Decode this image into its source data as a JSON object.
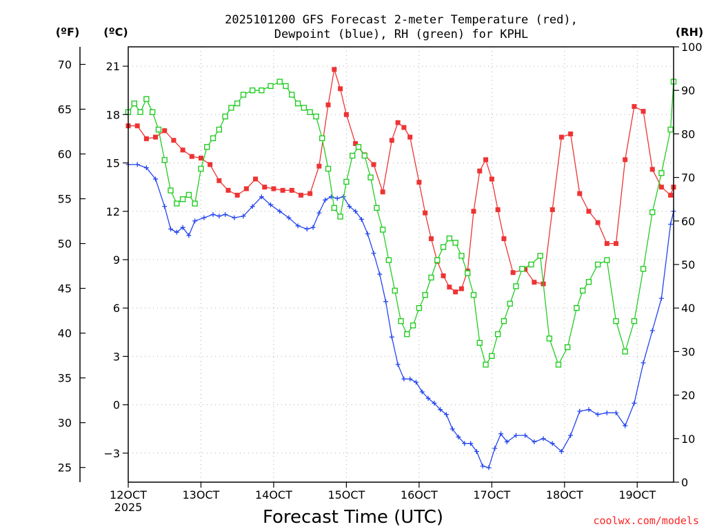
{
  "chart_data": {
    "type": "line",
    "title_line1": "2025101200 GFS Forecast 2-meter Temperature (red),",
    "title_line2": "Dewpoint (blue), RH (green) for KPHL",
    "xlabel": "Forecast Time (UTC)",
    "credit": "coolwx.com/models",
    "left_unit_f": "(ºF)",
    "left_unit_c": "(ºC)",
    "right_unit": "(RH)",
    "xlim": [
      0,
      180
    ],
    "ylim_c": [
      -4.8,
      22.2
    ],
    "ylim_rh": [
      0,
      100
    ],
    "x_ticks": [
      {
        "x": 0,
        "label": "12OCT",
        "sub": "2025"
      },
      {
        "x": 24,
        "label": "13OCT",
        "sub": ""
      },
      {
        "x": 48,
        "label": "14OCT",
        "sub": ""
      },
      {
        "x": 72,
        "label": "15OCT",
        "sub": ""
      },
      {
        "x": 96,
        "label": "16OCT",
        "sub": ""
      },
      {
        "x": 120,
        "label": "17OCT",
        "sub": ""
      },
      {
        "x": 144,
        "label": "18OCT",
        "sub": ""
      },
      {
        "x": 168,
        "label": "19OCT",
        "sub": ""
      }
    ],
    "c_ticks": [
      {
        "value": -3,
        "label": "−3"
      },
      {
        "value": 0,
        "label": "0"
      },
      {
        "value": 3,
        "label": "3"
      },
      {
        "value": 6,
        "label": "6"
      },
      {
        "value": 9,
        "label": "9"
      },
      {
        "value": 12,
        "label": "12"
      },
      {
        "value": 15,
        "label": "15"
      },
      {
        "value": 18,
        "label": "18"
      },
      {
        "value": 21,
        "label": "21"
      }
    ],
    "f_ticks": [
      {
        "value": 25,
        "label": "25"
      },
      {
        "value": 30,
        "label": "30"
      },
      {
        "value": 35,
        "label": "35"
      },
      {
        "value": 40,
        "label": "40"
      },
      {
        "value": 45,
        "label": "45"
      },
      {
        "value": 50,
        "label": "50"
      },
      {
        "value": 55,
        "label": "55"
      },
      {
        "value": 60,
        "label": "60"
      },
      {
        "value": 65,
        "label": "65"
      },
      {
        "value": 70,
        "label": "70"
      }
    ],
    "rh_ticks": [
      {
        "value": 0,
        "label": "0"
      },
      {
        "value": 10,
        "label": "10"
      },
      {
        "value": 20,
        "label": "20"
      },
      {
        "value": 30,
        "label": "30"
      },
      {
        "value": 40,
        "label": "40"
      },
      {
        "value": 50,
        "label": "50"
      },
      {
        "value": 60,
        "label": "60"
      },
      {
        "value": 70,
        "label": "70"
      },
      {
        "value": 80,
        "label": "80"
      },
      {
        "value": 90,
        "label": "90"
      },
      {
        "value": 100,
        "label": "100"
      }
    ],
    "series": [
      {
        "name": "2-meter Temperature",
        "axis": "C",
        "color": "#ee3333",
        "marker": "filled-square",
        "points": [
          [
            0,
            17.3
          ],
          [
            3,
            17.3
          ],
          [
            6,
            16.5
          ],
          [
            9,
            16.6
          ],
          [
            12,
            17.0
          ],
          [
            15,
            16.4
          ],
          [
            18,
            15.8
          ],
          [
            21,
            15.4
          ],
          [
            24,
            15.3
          ],
          [
            27,
            14.9
          ],
          [
            30,
            13.9
          ],
          [
            33,
            13.3
          ],
          [
            36,
            13.0
          ],
          [
            39,
            13.4
          ],
          [
            42,
            14.0
          ],
          [
            45,
            13.5
          ],
          [
            48,
            13.4
          ],
          [
            51,
            13.3
          ],
          [
            54,
            13.3
          ],
          [
            57,
            13.0
          ],
          [
            60,
            13.1
          ],
          [
            63,
            14.8
          ],
          [
            66,
            18.6
          ],
          [
            68,
            20.8
          ],
          [
            70,
            19.6
          ],
          [
            72,
            18.0
          ],
          [
            75,
            16.2
          ],
          [
            78,
            15.5
          ],
          [
            81,
            14.9
          ],
          [
            84,
            13.2
          ],
          [
            87,
            16.4
          ],
          [
            89,
            17.5
          ],
          [
            91,
            17.2
          ],
          [
            93,
            16.6
          ],
          [
            96,
            13.8
          ],
          [
            98,
            11.9
          ],
          [
            100,
            10.3
          ],
          [
            102,
            8.9
          ],
          [
            104,
            8.0
          ],
          [
            106,
            7.3
          ],
          [
            108,
            7.0
          ],
          [
            110,
            7.2
          ],
          [
            112,
            8.3
          ],
          [
            114,
            12.0
          ],
          [
            116,
            14.5
          ],
          [
            118,
            15.2
          ],
          [
            120,
            14.0
          ],
          [
            122,
            12.1
          ],
          [
            124,
            10.3
          ],
          [
            127,
            8.2
          ],
          [
            131,
            8.4
          ],
          [
            134,
            7.6
          ],
          [
            137,
            7.5
          ],
          [
            140,
            12.1
          ],
          [
            143,
            16.6
          ],
          [
            146,
            16.8
          ],
          [
            149,
            13.1
          ],
          [
            152,
            12.0
          ],
          [
            155,
            11.3
          ],
          [
            158,
            10.0
          ],
          [
            161,
            10.0
          ],
          [
            164,
            15.2
          ],
          [
            167,
            18.5
          ],
          [
            170,
            18.2
          ],
          [
            173,
            14.6
          ],
          [
            176,
            13.5
          ],
          [
            179,
            13.0
          ],
          [
            180,
            13.5
          ]
        ]
      },
      {
        "name": "Dewpoint",
        "axis": "C",
        "color": "#2244ee",
        "marker": "plus",
        "points": [
          [
            0,
            14.9
          ],
          [
            3,
            14.9
          ],
          [
            6,
            14.7
          ],
          [
            9,
            14.0
          ],
          [
            12,
            12.3
          ],
          [
            14,
            10.9
          ],
          [
            16,
            10.7
          ],
          [
            18,
            11.0
          ],
          [
            20,
            10.5
          ],
          [
            22,
            11.4
          ],
          [
            25,
            11.6
          ],
          [
            28,
            11.8
          ],
          [
            30,
            11.7
          ],
          [
            32,
            11.8
          ],
          [
            35,
            11.6
          ],
          [
            38,
            11.7
          ],
          [
            41,
            12.3
          ],
          [
            44,
            12.9
          ],
          [
            47,
            12.4
          ],
          [
            50,
            12.0
          ],
          [
            53,
            11.6
          ],
          [
            56,
            11.1
          ],
          [
            59,
            10.9
          ],
          [
            61,
            11.0
          ],
          [
            63,
            11.9
          ],
          [
            65,
            12.7
          ],
          [
            67,
            12.9
          ],
          [
            69,
            12.8
          ],
          [
            71,
            12.9
          ],
          [
            73,
            12.3
          ],
          [
            75,
            12.0
          ],
          [
            77,
            11.5
          ],
          [
            79,
            10.6
          ],
          [
            81,
            9.4
          ],
          [
            83,
            8.1
          ],
          [
            85,
            6.4
          ],
          [
            87,
            4.2
          ],
          [
            89,
            2.5
          ],
          [
            91,
            1.6
          ],
          [
            93,
            1.6
          ],
          [
            95,
            1.4
          ],
          [
            97,
            0.8
          ],
          [
            99,
            0.4
          ],
          [
            101,
            0.1
          ],
          [
            103,
            -0.3
          ],
          [
            105,
            -0.6
          ],
          [
            107,
            -1.5
          ],
          [
            109,
            -2.0
          ],
          [
            111,
            -2.4
          ],
          [
            113,
            -2.4
          ],
          [
            115,
            -2.9
          ],
          [
            117,
            -3.8
          ],
          [
            119,
            -3.9
          ],
          [
            121,
            -2.7
          ],
          [
            123,
            -1.8
          ],
          [
            125,
            -2.3
          ],
          [
            128,
            -1.9
          ],
          [
            131,
            -1.9
          ],
          [
            134,
            -2.3
          ],
          [
            137,
            -2.1
          ],
          [
            140,
            -2.4
          ],
          [
            143,
            -2.9
          ],
          [
            146,
            -1.9
          ],
          [
            149,
            -0.4
          ],
          [
            152,
            -0.3
          ],
          [
            155,
            -0.6
          ],
          [
            158,
            -0.5
          ],
          [
            161,
            -0.5
          ],
          [
            164,
            -1.3
          ],
          [
            167,
            0.1
          ],
          [
            170,
            2.6
          ],
          [
            173,
            4.6
          ],
          [
            176,
            6.6
          ],
          [
            179,
            11.2
          ],
          [
            180,
            12.0
          ]
        ]
      },
      {
        "name": "RH",
        "axis": "RH",
        "color": "#22cc22",
        "marker": "open-square",
        "points": [
          [
            0,
            85
          ],
          [
            2,
            87
          ],
          [
            4,
            85
          ],
          [
            6,
            88
          ],
          [
            8,
            85
          ],
          [
            10,
            81
          ],
          [
            12,
            74
          ],
          [
            14,
            67
          ],
          [
            16,
            64
          ],
          [
            18,
            65
          ],
          [
            20,
            66
          ],
          [
            22,
            64
          ],
          [
            24,
            72
          ],
          [
            26,
            77
          ],
          [
            28,
            79
          ],
          [
            30,
            81
          ],
          [
            32,
            84
          ],
          [
            34,
            86
          ],
          [
            36,
            87
          ],
          [
            38,
            89
          ],
          [
            41,
            90
          ],
          [
            44,
            90
          ],
          [
            47,
            91
          ],
          [
            50,
            92
          ],
          [
            52,
            91
          ],
          [
            54,
            89
          ],
          [
            56,
            87
          ],
          [
            58,
            86
          ],
          [
            60,
            85
          ],
          [
            62,
            84
          ],
          [
            64,
            79
          ],
          [
            66,
            72
          ],
          [
            68,
            63
          ],
          [
            70,
            61
          ],
          [
            72,
            69
          ],
          [
            74,
            75
          ],
          [
            76,
            77
          ],
          [
            78,
            75
          ],
          [
            80,
            70
          ],
          [
            82,
            63
          ],
          [
            84,
            58
          ],
          [
            86,
            51
          ],
          [
            88,
            44
          ],
          [
            90,
            37
          ],
          [
            92,
            34
          ],
          [
            94,
            36
          ],
          [
            96,
            40
          ],
          [
            98,
            43
          ],
          [
            100,
            47
          ],
          [
            102,
            51
          ],
          [
            104,
            54
          ],
          [
            106,
            56
          ],
          [
            108,
            55
          ],
          [
            110,
            52
          ],
          [
            112,
            48
          ],
          [
            114,
            43
          ],
          [
            116,
            32
          ],
          [
            118,
            27
          ],
          [
            120,
            29
          ],
          [
            122,
            34
          ],
          [
            124,
            37
          ],
          [
            126,
            41
          ],
          [
            128,
            45
          ],
          [
            130,
            49
          ],
          [
            133,
            50
          ],
          [
            136,
            52
          ],
          [
            139,
            33
          ],
          [
            142,
            27
          ],
          [
            145,
            31
          ],
          [
            148,
            40
          ],
          [
            150,
            44
          ],
          [
            152,
            46
          ],
          [
            155,
            50
          ],
          [
            158,
            51
          ],
          [
            161,
            37
          ],
          [
            164,
            30
          ],
          [
            167,
            37
          ],
          [
            170,
            49
          ],
          [
            173,
            62
          ],
          [
            176,
            71
          ],
          [
            179,
            81
          ],
          [
            180,
            92
          ]
        ]
      }
    ]
  }
}
